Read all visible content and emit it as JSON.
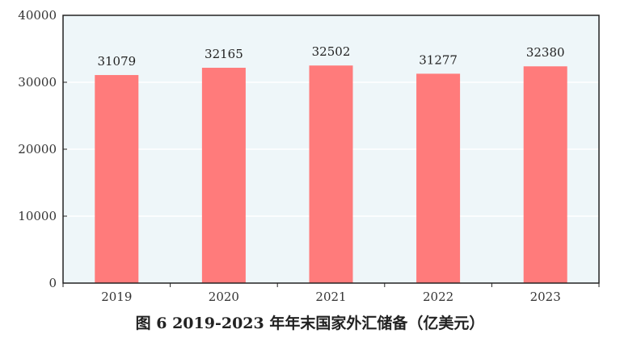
{
  "chart_data": {
    "type": "bar",
    "categories": [
      "2019",
      "2020",
      "2021",
      "2022",
      "2023"
    ],
    "values": [
      31079,
      32165,
      32502,
      31277,
      32380
    ],
    "data_labels": [
      "31079",
      "32165",
      "32502",
      "31277",
      "32380"
    ],
    "ylim": [
      0,
      40000
    ],
    "yticks": [
      0,
      10000,
      20000,
      30000,
      40000
    ],
    "ytick_labels": [
      "0",
      "10000",
      "20000",
      "30000",
      "40000"
    ],
    "grid": true,
    "legend": "none",
    "colors": {
      "bar": "#ff7b7b",
      "plot_background": "#eef6f9",
      "gridline": "#ffffff",
      "axis": "#222222"
    }
  },
  "caption": "图 6   2019-2023 年年末国家外汇储备（亿美元）"
}
